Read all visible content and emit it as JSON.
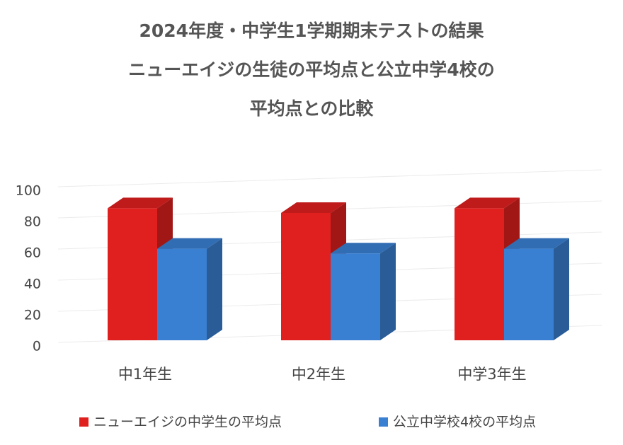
{
  "chart_data": {
    "type": "bar3d",
    "title": [
      "2024年度・中学生1学期期末テストの結果",
      "ニューエイジの生徒の平均点と公立中学4校の",
      "平均点との比較"
    ],
    "categories": [
      "中1年生",
      "中2年生",
      "中学3年生"
    ],
    "series": [
      {
        "name": "ニューエイジの中学生の平均点",
        "color": "#e0201e",
        "values": [
          93,
          90,
          93
        ]
      },
      {
        "name": "公立中学校4校の平均点",
        "color": "#3a80d2",
        "values": [
          67,
          64,
          67
        ]
      }
    ],
    "ylim": [
      0,
      100
    ],
    "yticks": [
      0,
      20,
      40,
      60,
      80,
      100
    ],
    "grid": true,
    "legend": "bottom"
  }
}
